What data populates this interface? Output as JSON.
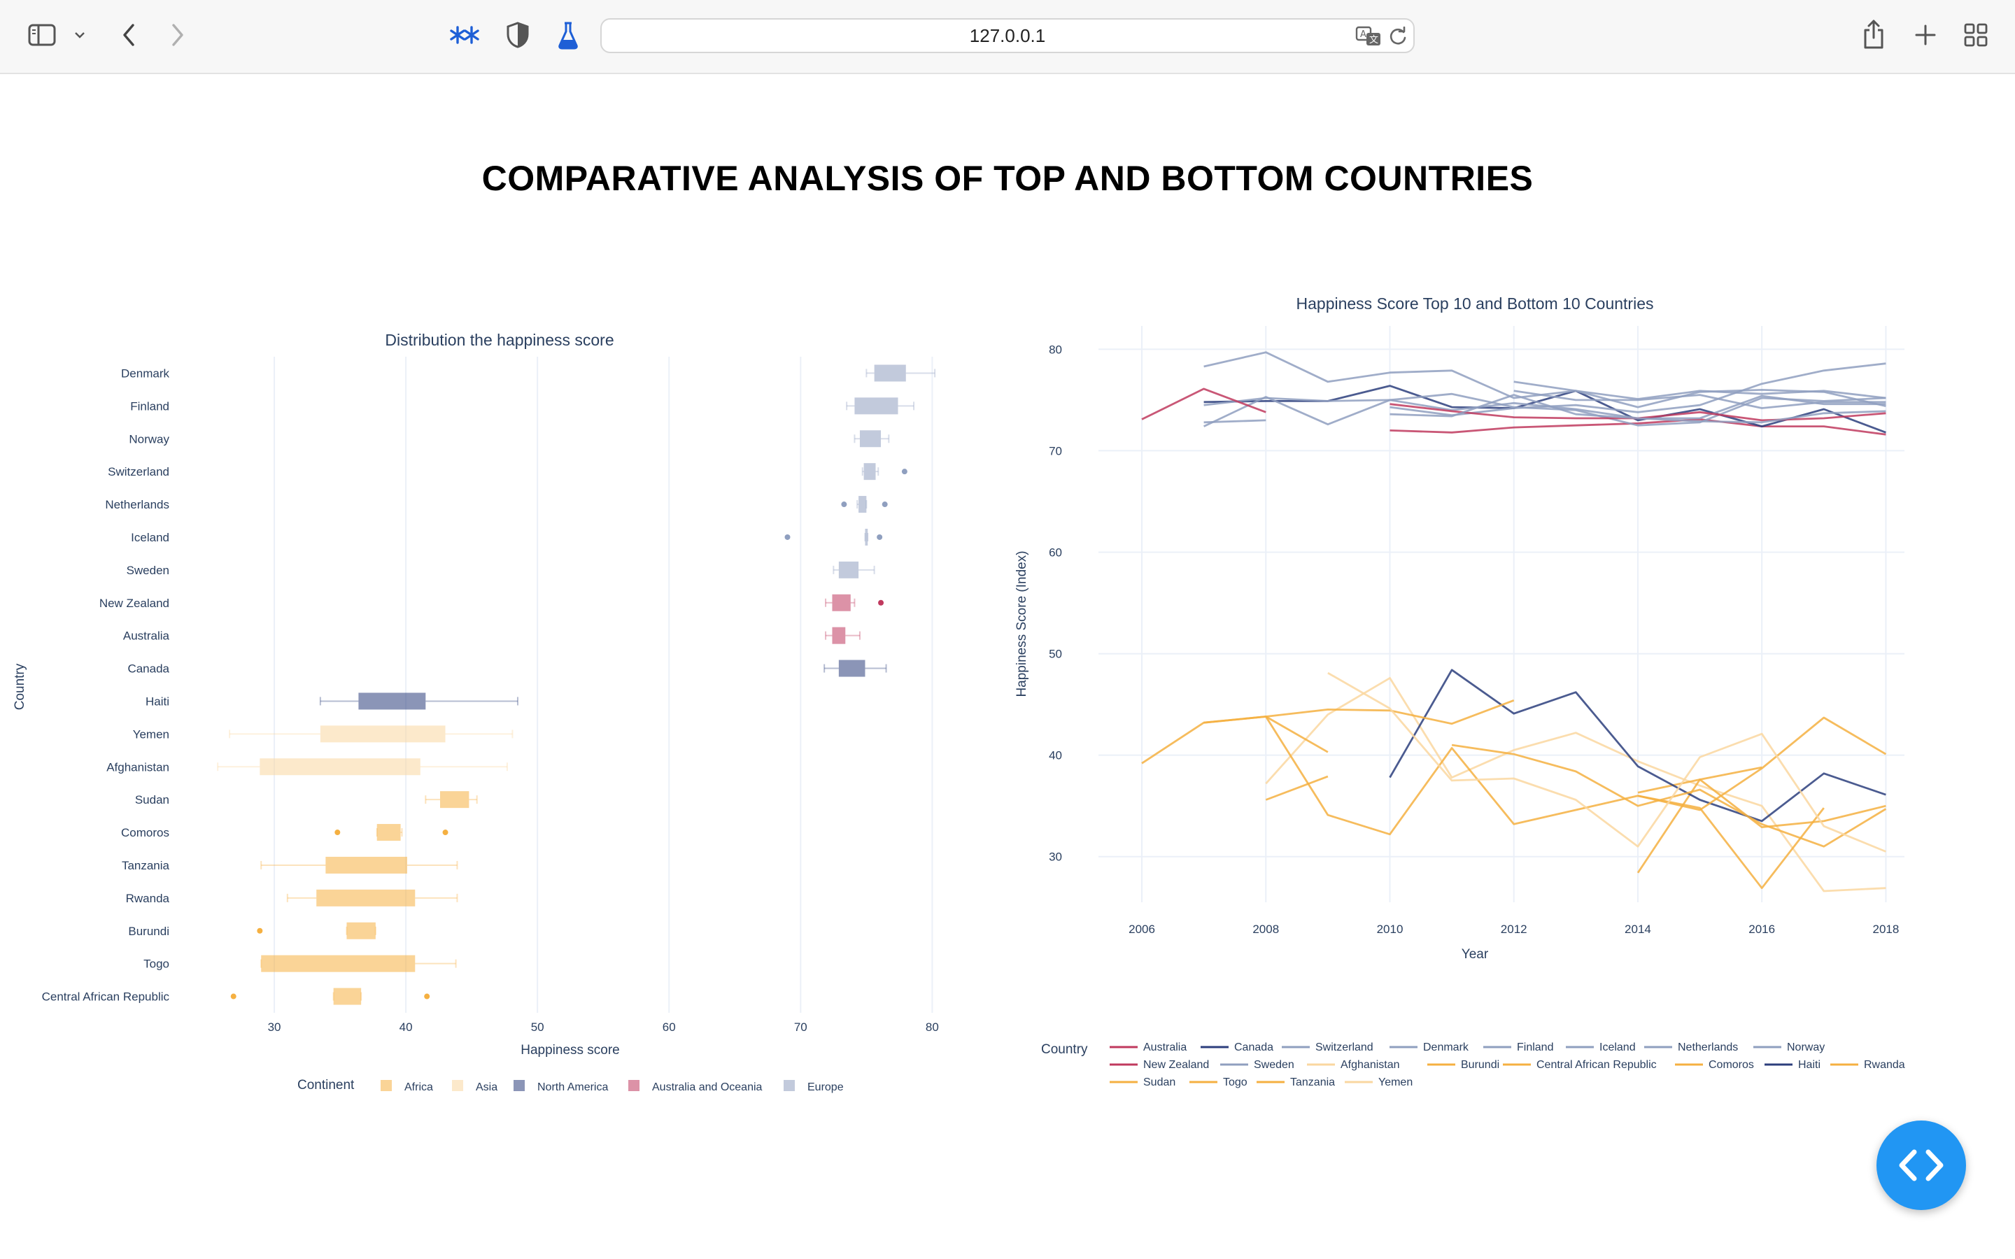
{
  "browser": {
    "url": "127.0.0.1",
    "icons": {
      "sidebar": "sidebar-icon",
      "dropdown": "chevron-down-icon",
      "back": "back-arrow-icon",
      "forward": "forward-arrow-icon",
      "extension1": "sparkle-extension-icon",
      "extension2": "shield-icon",
      "extension3": "flask-icon",
      "translate": "translate-icon",
      "reload": "reload-icon",
      "share": "share-icon",
      "newtab": "plus-icon",
      "tabs": "tab-overview-icon"
    }
  },
  "page": {
    "title": "COMPARATIVE ANALYSIS OF TOP AND BOTTOM COUNTRIES"
  },
  "fab": {
    "icon": "code-icon"
  },
  "colors": {
    "Africa": "#f5b041",
    "Asia": "#fad7a0",
    "North America": "#2c3e7c",
    "Australia and Oceania": "#c0395e",
    "Europe": "#8f9fbf"
  },
  "chart_data": [
    {
      "type": "box",
      "title": "Distribution the happiness score",
      "xlabel": "Happiness score",
      "ylabel": "Country",
      "xlim": [
        25,
        82
      ],
      "xticks": [
        30,
        40,
        50,
        60,
        70,
        80
      ],
      "grid": true,
      "legend_title": "Continent",
      "legend": [
        "Africa",
        "Asia",
        "North America",
        "Australia and Oceania",
        "Europe"
      ],
      "legend_placement": "bottom",
      "categories": [
        "Denmark",
        "Finland",
        "Norway",
        "Switzerland",
        "Netherlands",
        "Iceland",
        "Sweden",
        "New Zealand",
        "Australia",
        "Canada",
        "Haiti",
        "Yemen",
        "Afghanistan",
        "Sudan",
        "Comoros",
        "Tanzania",
        "Rwanda",
        "Burundi",
        "Togo",
        "Central African Republic"
      ],
      "boxes": [
        {
          "country": "Denmark",
          "continent": "Europe",
          "min": 75.0,
          "q1": 75.6,
          "q3": 78.0,
          "max": 80.2,
          "outliers": []
        },
        {
          "country": "Finland",
          "continent": "Europe",
          "min": 73.5,
          "q1": 74.1,
          "q3": 77.4,
          "max": 78.6,
          "outliers": []
        },
        {
          "country": "Norway",
          "continent": "Europe",
          "min": 74.1,
          "q1": 74.5,
          "q3": 76.1,
          "max": 76.7,
          "outliers": []
        },
        {
          "country": "Switzerland",
          "continent": "Europe",
          "min": 74.7,
          "q1": 74.8,
          "q3": 75.7,
          "max": 75.9,
          "outliers": [
            77.9
          ]
        },
        {
          "country": "Netherlands",
          "continent": "Europe",
          "min": 74.3,
          "q1": 74.4,
          "q3": 75.0,
          "max": 75.0,
          "outliers": [
            73.3,
            76.4
          ]
        },
        {
          "country": "Iceland",
          "continent": "Europe",
          "min": 74.9,
          "q1": 74.9,
          "q3": 75.1,
          "max": 75.1,
          "outliers": [
            69.0,
            76.0
          ]
        },
        {
          "country": "Sweden",
          "continent": "Europe",
          "min": 72.5,
          "q1": 72.9,
          "q3": 74.4,
          "max": 75.6,
          "outliers": []
        },
        {
          "country": "New Zealand",
          "continent": "Australia and Oceania",
          "min": 71.9,
          "q1": 72.4,
          "q3": 73.8,
          "max": 74.1,
          "outliers": [
            76.1
          ]
        },
        {
          "country": "Australia",
          "continent": "Australia and Oceania",
          "min": 71.9,
          "q1": 72.4,
          "q3": 73.4,
          "max": 74.5,
          "outliers": []
        },
        {
          "country": "Canada",
          "continent": "North America",
          "min": 71.8,
          "q1": 72.9,
          "q3": 74.9,
          "max": 76.5,
          "outliers": []
        },
        {
          "country": "Haiti",
          "continent": "North America",
          "min": 33.5,
          "q1": 36.4,
          "q3": 41.5,
          "max": 48.5,
          "outliers": []
        },
        {
          "country": "Yemen",
          "continent": "Asia",
          "min": 26.6,
          "q1": 33.5,
          "q3": 43.0,
          "max": 48.1,
          "outliers": []
        },
        {
          "country": "Afghanistan",
          "continent": "Asia",
          "min": 25.7,
          "q1": 28.9,
          "q3": 41.1,
          "max": 47.7,
          "outliers": []
        },
        {
          "country": "Sudan",
          "continent": "Africa",
          "min": 41.5,
          "q1": 42.6,
          "q3": 44.8,
          "max": 45.4,
          "outliers": []
        },
        {
          "country": "Comoros",
          "continent": "Africa",
          "min": 37.8,
          "q1": 37.8,
          "q3": 39.6,
          "max": 39.7,
          "outliers": [
            34.8,
            43.0
          ]
        },
        {
          "country": "Tanzania",
          "continent": "Africa",
          "min": 29.0,
          "q1": 33.9,
          "q3": 40.1,
          "max": 43.9,
          "outliers": []
        },
        {
          "country": "Rwanda",
          "continent": "Africa",
          "min": 31.0,
          "q1": 33.2,
          "q3": 40.7,
          "max": 43.9,
          "outliers": []
        },
        {
          "country": "Burundi",
          "continent": "Africa",
          "min": 35.5,
          "q1": 35.5,
          "q3": 37.7,
          "max": 37.7,
          "outliers": [
            28.9
          ]
        },
        {
          "country": "Togo",
          "continent": "Africa",
          "min": 29.0,
          "q1": 29.0,
          "q3": 40.7,
          "max": 43.8,
          "outliers": []
        },
        {
          "country": "Central African Republic",
          "continent": "Africa",
          "min": 34.5,
          "q1": 34.5,
          "q3": 36.6,
          "max": 36.6,
          "outliers": [
            26.9,
            41.6
          ]
        }
      ]
    },
    {
      "type": "line",
      "title": "Happiness Score Top 10 and Bottom 10 Countries",
      "xlabel": "Year",
      "ylabel": "Happiness Score (Index)",
      "xlim": [
        2005.3,
        2018.3
      ],
      "ylim": [
        25.5,
        82.3
      ],
      "xticks": [
        2006,
        2008,
        2010,
        2012,
        2014,
        2016,
        2018
      ],
      "yticks": [
        30,
        40,
        50,
        60,
        70,
        80
      ],
      "grid": true,
      "legend_title": "Country",
      "legend_placement": "bottom",
      "series": [
        {
          "name": "Australia",
          "continent": "Australia and Oceania",
          "x": [
            2010,
            2011,
            2012,
            2013,
            2014,
            2015,
            2016,
            2017,
            2018
          ],
          "y": [
            72.0,
            71.8,
            72.3,
            72.5,
            72.7,
            73.1,
            72.4,
            72.4,
            71.6
          ]
        },
        {
          "name": "Canada",
          "continent": "North America",
          "x": [
            2007,
            2008,
            2009,
            2010,
            2011,
            2012,
            2013,
            2014,
            2015,
            2016,
            2017,
            2018
          ],
          "y": [
            74.8,
            74.9,
            74.9,
            76.4,
            74.3,
            74.2,
            75.9,
            73.0,
            74.1,
            72.4,
            74.1,
            71.8
          ]
        },
        {
          "name": "Switzerland",
          "continent": "Europe",
          "x": [
            2007,
            2008,
            2009,
            2010,
            2011,
            2012,
            2013,
            2014,
            2015,
            2016,
            2017,
            2018
          ],
          "y": [
            72.4,
            75.3,
            72.6,
            75.0,
            75.6,
            74.3,
            74.0,
            72.5,
            72.8,
            75.2,
            74.9,
            75.2
          ]
        },
        {
          "name": "Denmark",
          "continent": "Europe",
          "x": [
            2007,
            2008,
            2009,
            2010,
            2011,
            2012,
            2013,
            2014,
            2015,
            2016,
            2017,
            2018
          ],
          "y": [
            78.3,
            79.7,
            76.8,
            77.7,
            77.9,
            75.2,
            75.9,
            75.1,
            75.9,
            75.6,
            75.9,
            75.2
          ]
        },
        {
          "name": "Finland",
          "continent": "Europe",
          "x": [
            2010,
            2011,
            2012,
            2013,
            2014,
            2015,
            2016,
            2017,
            2018
          ],
          "y": [
            74.3,
            73.5,
            74.2,
            74.5,
            73.8,
            74.5,
            76.6,
            77.9,
            78.6
          ]
        },
        {
          "name": "Iceland",
          "continent": "Europe",
          "x": [
            2012,
            2013,
            2014,
            2015,
            2016,
            2017,
            2018
          ],
          "y": [
            75.9,
            75.0,
            75.0,
            75.5,
            74.2,
            74.8,
            74.8
          ]
        },
        {
          "name": "Netherlands",
          "continent": "Europe",
          "x": [
            2007,
            2008,
            2009,
            2010,
            2011,
            2012,
            2013,
            2014,
            2015,
            2016,
            2017,
            2018
          ],
          "y": [
            74.5,
            75.2,
            74.9,
            75.0,
            74.0,
            74.7,
            74.1,
            73.2,
            73.2,
            75.4,
            74.6,
            74.6
          ]
        },
        {
          "name": "Norway",
          "continent": "Europe",
          "x": [
            2012,
            2013,
            2014,
            2015,
            2016,
            2017,
            2018
          ],
          "y": [
            76.8,
            75.9,
            74.3,
            75.8,
            76.0,
            75.8,
            74.4
          ]
        },
        {
          "name": "New Zealand",
          "continent": "Australia and Oceania",
          "x": [
            2006,
            2007,
            2008,
            2009,
            2010,
            2011,
            2012,
            2013,
            2014,
            2015,
            2016,
            2017,
            2018
          ],
          "y": [
            73.1,
            76.1,
            73.8,
            null,
            74.6,
            73.9,
            73.3,
            73.2,
            73.2,
            73.8,
            73.0,
            73.2,
            73.7
          ]
        },
        {
          "name": "Sweden",
          "continent": "Europe",
          "x": [
            2007,
            2008,
            2009,
            2010,
            2011,
            2012,
            2013,
            2014,
            2015,
            2016,
            2017,
            2018
          ],
          "y": [
            72.8,
            73.0,
            null,
            73.6,
            73.4,
            75.5,
            73.6,
            73.2,
            72.9,
            72.8,
            73.7,
            73.9
          ]
        },
        {
          "name": "Afghanistan",
          "continent": "Asia",
          "x": [
            2008,
            2009,
            2010,
            2011,
            2012,
            2013,
            2014,
            2015,
            2016,
            2017,
            2018
          ],
          "y": [
            37.2,
            44.0,
            47.6,
            37.8,
            40.5,
            42.2,
            39.4,
            37.0,
            35.0,
            26.6,
            26.9
          ]
        },
        {
          "name": "Burundi",
          "continent": "Africa",
          "x": [
            2008,
            2009,
            2010,
            2011,
            2012,
            2013,
            2014,
            2015,
            2016,
            2017,
            2018
          ],
          "y": [
            35.6,
            37.9,
            null,
            null,
            null,
            null,
            28.4,
            37.6,
            38.8,
            null,
            null
          ]
        },
        {
          "name": "Central African Republic",
          "continent": "Africa",
          "x": [
            2007,
            2008,
            2009,
            2010,
            2011,
            2012,
            2013,
            2014,
            2015,
            2016,
            2017,
            2018
          ],
          "y": [
            43.2,
            43.8,
            34.1,
            32.2,
            40.7,
            33.2,
            34.6,
            36.0,
            34.8,
            26.9,
            34.8,
            null
          ]
        },
        {
          "name": "Comoros",
          "continent": "Africa",
          "x": [
            2009,
            2010,
            2011,
            2012,
            2013,
            2014,
            2015,
            2016,
            2017,
            2018
          ],
          "y": [
            null,
            null,
            null,
            null,
            null,
            36.3,
            37.6,
            32.9,
            33.5,
            35.0
          ]
        },
        {
          "name": "Haiti",
          "continent": "North America",
          "x": [
            2010,
            2011,
            2012,
            2013,
            2014,
            2015,
            2016,
            2017,
            2018
          ],
          "y": [
            37.8,
            48.4,
            44.1,
            46.2,
            38.9,
            35.6,
            33.5,
            38.2,
            36.1
          ]
        },
        {
          "name": "Rwanda",
          "continent": "Africa",
          "x": [
            2008,
            2009,
            2010,
            2011,
            2012,
            2013,
            2014,
            2015,
            2016,
            2017,
            2018
          ],
          "y": [
            null,
            null,
            null,
            41.0,
            40.1,
            38.4,
            35.0,
            36.6,
            33.2,
            31.0,
            34.7
          ]
        },
        {
          "name": "Sudan",
          "continent": "Africa",
          "x": [
            2006,
            2007,
            2008,
            2009,
            2010,
            2011,
            2012
          ],
          "y": [
            39.2,
            43.2,
            43.8,
            44.5,
            44.4,
            43.1,
            45.4
          ]
        },
        {
          "name": "Togo",
          "continent": "Africa",
          "x": [
            2008,
            2009,
            2010,
            2011,
            2012,
            2013,
            2014,
            2015,
            2016,
            2017,
            2018
          ],
          "y": [
            null,
            null,
            null,
            null,
            null,
            null,
            null,
            null,
            null,
            null,
            null
          ]
        },
        {
          "name": "Tanzania",
          "continent": "Africa",
          "x": [
            2008,
            2009,
            2010,
            2011,
            2012,
            2013,
            2014,
            2015,
            2016,
            2017,
            2018
          ],
          "y": [
            43.8,
            40.3,
            null,
            null,
            null,
            null,
            36.0,
            34.6,
            38.7,
            43.7,
            40.1
          ]
        },
        {
          "name": "Yemen",
          "continent": "Asia",
          "x": [
            2009,
            2010,
            2011,
            2012,
            2013,
            2014,
            2015,
            2016,
            2017,
            2018
          ],
          "y": [
            48.1,
            44.6,
            37.5,
            37.7,
            35.6,
            31.0,
            39.8,
            42.1,
            33.0,
            30.5
          ]
        }
      ]
    }
  ]
}
